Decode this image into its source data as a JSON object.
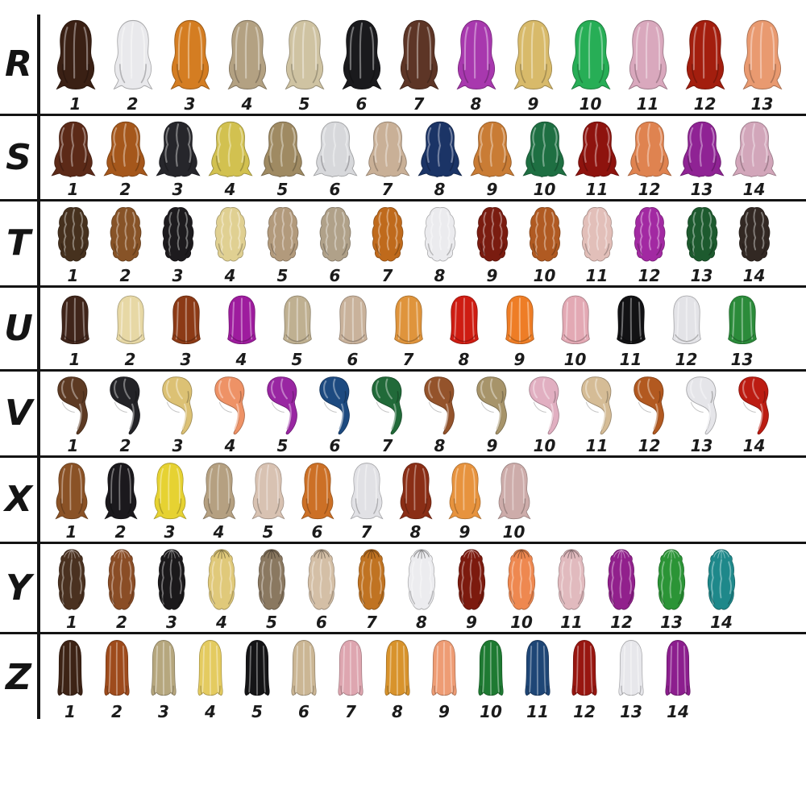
{
  "page": {
    "background": "#ffffff",
    "line_color": "#141414",
    "number_color": "#1b1b1b"
  },
  "chart_data": {
    "type": "table",
    "title": "",
    "description": "Hair style and color reference chart: rows of wig swatches labeled R, S, T, U, V, X, Y, Z with numbered color variants",
    "rows": [
      {
        "label": "R",
        "style": "wavy",
        "style_desc": "wavy shoulder-length",
        "items": [
          {
            "n": "1",
            "color": "dark brown",
            "hex": "#3a2014"
          },
          {
            "n": "2",
            "color": "silver white",
            "hex": "#e9e9ec"
          },
          {
            "n": "3",
            "color": "copper orange",
            "hex": "#d47d22"
          },
          {
            "n": "4",
            "color": "ash blonde",
            "hex": "#b3a182"
          },
          {
            "n": "5",
            "color": "champagne blonde",
            "hex": "#cfc3a2"
          },
          {
            "n": "6",
            "color": "black",
            "hex": "#1a1a1d"
          },
          {
            "n": "7",
            "color": "chestnut brown",
            "hex": "#5d3526"
          },
          {
            "n": "8",
            "color": "magenta purple",
            "hex": "#a838ae"
          },
          {
            "n": "9",
            "color": "golden blonde",
            "hex": "#d8ba6a"
          },
          {
            "n": "10",
            "color": "green",
            "hex": "#27ae56"
          },
          {
            "n": "11",
            "color": "pink",
            "hex": "#d9a8bd"
          },
          {
            "n": "12",
            "color": "dark red",
            "hex": "#a31e0e"
          },
          {
            "n": "13",
            "color": "peach",
            "hex": "#e99a70"
          }
        ]
      },
      {
        "label": "S",
        "style": "curly",
        "style_desc": "long loose curls",
        "items": [
          {
            "n": "1",
            "color": "dark auburn",
            "hex": "#5c2a18"
          },
          {
            "n": "2",
            "color": "copper brown",
            "hex": "#a5571b"
          },
          {
            "n": "3",
            "color": "black",
            "hex": "#26262b"
          },
          {
            "n": "4",
            "color": "yellow gold",
            "hex": "#d2c150"
          },
          {
            "n": "5",
            "color": "ash brown",
            "hex": "#9f8a62"
          },
          {
            "n": "6",
            "color": "silver white",
            "hex": "#d7d8db"
          },
          {
            "n": "7",
            "color": "beige blonde",
            "hex": "#c9b097"
          },
          {
            "n": "8",
            "color": "navy blue",
            "hex": "#1b3466"
          },
          {
            "n": "9",
            "color": "copper orange",
            "hex": "#c97c35"
          },
          {
            "n": "10",
            "color": "dark green",
            "hex": "#1e6f42"
          },
          {
            "n": "11",
            "color": "dark red",
            "hex": "#8e130e"
          },
          {
            "n": "12",
            "color": "coral orange",
            "hex": "#df8350"
          },
          {
            "n": "13",
            "color": "purple",
            "hex": "#8f2394"
          },
          {
            "n": "14",
            "color": "dusty pink",
            "hex": "#d2a6ba"
          }
        ]
      },
      {
        "label": "T",
        "style": "frizzy",
        "style_desc": "tight frizzy curls",
        "items": [
          {
            "n": "1",
            "color": "dark brown",
            "hex": "#46311e"
          },
          {
            "n": "2",
            "color": "medium brown",
            "hex": "#875327"
          },
          {
            "n": "3",
            "color": "black",
            "hex": "#1d1b1e"
          },
          {
            "n": "4",
            "color": "pale blonde",
            "hex": "#e0d092"
          },
          {
            "n": "5",
            "color": "ash brown",
            "hex": "#b29a7c"
          },
          {
            "n": "6",
            "color": "ash taupe",
            "hex": "#b0a189"
          },
          {
            "n": "7",
            "color": "copper orange",
            "hex": "#bf6a1c"
          },
          {
            "n": "8",
            "color": "white",
            "hex": "#ebebee"
          },
          {
            "n": "9",
            "color": "dark red",
            "hex": "#7a1c10"
          },
          {
            "n": "10",
            "color": "rust orange",
            "hex": "#b05a22"
          },
          {
            "n": "11",
            "color": "pale pink",
            "hex": "#e2bfb9"
          },
          {
            "n": "12",
            "color": "magenta",
            "hex": "#a229a2"
          },
          {
            "n": "13",
            "color": "dark green",
            "hex": "#1d5a2e"
          },
          {
            "n": "14",
            "color": "dark chocolate",
            "hex": "#322823"
          }
        ]
      },
      {
        "label": "U",
        "style": "bob",
        "style_desc": "straight bob",
        "items": [
          {
            "n": "1",
            "color": "dark brown",
            "hex": "#40251a"
          },
          {
            "n": "2",
            "color": "pale blonde",
            "hex": "#e7d8a5"
          },
          {
            "n": "3",
            "color": "auburn",
            "hex": "#8c3a16"
          },
          {
            "n": "4",
            "color": "purple",
            "hex": "#9e1c9e"
          },
          {
            "n": "5",
            "color": "ash blonde",
            "hex": "#bfb091"
          },
          {
            "n": "6",
            "color": "beige tan",
            "hex": "#c9b29b"
          },
          {
            "n": "7",
            "color": "golden orange",
            "hex": "#df943c"
          },
          {
            "n": "8",
            "color": "red",
            "hex": "#ce1c12"
          },
          {
            "n": "9",
            "color": "orange",
            "hex": "#ee7d26"
          },
          {
            "n": "10",
            "color": "pink",
            "hex": "#e3a9b4"
          },
          {
            "n": "11",
            "color": "black",
            "hex": "#121214"
          },
          {
            "n": "12",
            "color": "white",
            "hex": "#e3e3e7"
          },
          {
            "n": "13",
            "color": "green",
            "hex": "#2b8b3a"
          }
        ]
      },
      {
        "label": "V",
        "style": "sideswept",
        "style_desc": "side-swept over-shoulder",
        "items": [
          {
            "n": "1",
            "color": "brown",
            "hex": "#5d3a23"
          },
          {
            "n": "2",
            "color": "black",
            "hex": "#232327"
          },
          {
            "n": "3",
            "color": "blonde",
            "hex": "#dcc174"
          },
          {
            "n": "4",
            "color": "peach orange",
            "hex": "#ee9266"
          },
          {
            "n": "5",
            "color": "purple",
            "hex": "#9926a2"
          },
          {
            "n": "6",
            "color": "navy blue",
            "hex": "#1d4a80"
          },
          {
            "n": "7",
            "color": "green",
            "hex": "#216a39"
          },
          {
            "n": "8",
            "color": "chestnut brown",
            "hex": "#94532b"
          },
          {
            "n": "9",
            "color": "dark blonde",
            "hex": "#a7946a"
          },
          {
            "n": "10",
            "color": "pink",
            "hex": "#e1afc1"
          },
          {
            "n": "11",
            "color": "beige blonde",
            "hex": "#d5bc96"
          },
          {
            "n": "12",
            "color": "copper",
            "hex": "#b25920"
          },
          {
            "n": "13",
            "color": "white",
            "hex": "#e5e5e9"
          },
          {
            "n": "14",
            "color": "red",
            "hex": "#bc1c12"
          }
        ]
      },
      {
        "label": "X",
        "style": "wavy",
        "style_desc": "soft waves",
        "items": [
          {
            "n": "1",
            "color": "brown",
            "hex": "#8a5226"
          },
          {
            "n": "2",
            "color": "black",
            "hex": "#1b191d"
          },
          {
            "n": "3",
            "color": "yellow",
            "hex": "#e6d232"
          },
          {
            "n": "4",
            "color": "ash blonde",
            "hex": "#b5a081"
          },
          {
            "n": "5",
            "color": "pale beige",
            "hex": "#d8c2b2"
          },
          {
            "n": "6",
            "color": "copper orange",
            "hex": "#cc7026"
          },
          {
            "n": "7",
            "color": "silver white",
            "hex": "#e1e1e5"
          },
          {
            "n": "8",
            "color": "dark auburn",
            "hex": "#8a2e16"
          },
          {
            "n": "9",
            "color": "orange",
            "hex": "#e7933e"
          },
          {
            "n": "10",
            "color": "mauve pink",
            "hex": "#cdacaa"
          }
        ]
      },
      {
        "label": "Y",
        "style": "halfup",
        "style_desc": "half-up braided crown with curls",
        "items": [
          {
            "n": "1",
            "color": "dark brown",
            "hex": "#4a3120"
          },
          {
            "n": "2",
            "color": "chestnut brown",
            "hex": "#8a4d26"
          },
          {
            "n": "3",
            "color": "black",
            "hex": "#1b191b"
          },
          {
            "n": "4",
            "color": "golden blonde",
            "hex": "#e0c97a"
          },
          {
            "n": "5",
            "color": "ash brown",
            "hex": "#8a7860"
          },
          {
            "n": "6",
            "color": "pale beige",
            "hex": "#d4bfa6"
          },
          {
            "n": "7",
            "color": "copper gold",
            "hex": "#c07322"
          },
          {
            "n": "8",
            "color": "white",
            "hex": "#ececef"
          },
          {
            "n": "9",
            "color": "dark red",
            "hex": "#7c1a0e"
          },
          {
            "n": "10",
            "color": "salmon orange",
            "hex": "#ee8850"
          },
          {
            "n": "11",
            "color": "pale pink",
            "hex": "#e1babe"
          },
          {
            "n": "12",
            "color": "purple",
            "hex": "#91208c"
          },
          {
            "n": "13",
            "color": "green",
            "hex": "#2b9436"
          },
          {
            "n": "14",
            "color": "teal",
            "hex": "#1e888a"
          }
        ]
      },
      {
        "label": "Z",
        "style": "straight",
        "style_desc": "long straight",
        "items": [
          {
            "n": "1",
            "color": "dark brown",
            "hex": "#3d2315"
          },
          {
            "n": "2",
            "color": "copper auburn",
            "hex": "#9e4b1c"
          },
          {
            "n": "3",
            "color": "ash blonde",
            "hex": "#b6a77e"
          },
          {
            "n": "4",
            "color": "golden blonde",
            "hex": "#e4cb60"
          },
          {
            "n": "5",
            "color": "black",
            "hex": "#141416"
          },
          {
            "n": "6",
            "color": "beige blonde",
            "hex": "#cbb694"
          },
          {
            "n": "7",
            "color": "pink",
            "hex": "#dea6b0"
          },
          {
            "n": "8",
            "color": "golden orange",
            "hex": "#d8932c"
          },
          {
            "n": "9",
            "color": "peach",
            "hex": "#ee9c74"
          },
          {
            "n": "10",
            "color": "green",
            "hex": "#1e7a32"
          },
          {
            "n": "11",
            "color": "blue",
            "hex": "#1e4676"
          },
          {
            "n": "12",
            "color": "dark red",
            "hex": "#981610"
          },
          {
            "n": "13",
            "color": "white",
            "hex": "#e7e7eb"
          },
          {
            "n": "14",
            "color": "purple",
            "hex": "#8c1e8e"
          }
        ]
      }
    ]
  }
}
